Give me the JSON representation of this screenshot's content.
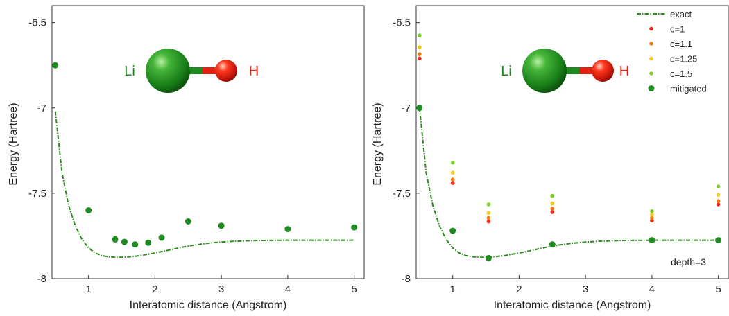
{
  "colors": {
    "exact": "#2e8b1e",
    "mitigated": "#1f8a1f",
    "c_1": "#e8281a",
    "c_1_1": "#f07a10",
    "c_1_25": "#f4c81c",
    "c_1_5": "#7fcf2a",
    "Li": "#1a8a1a",
    "H": "#e02010",
    "axis": "#333333"
  },
  "molecule": {
    "atom_left": "Li",
    "atom_right": "H"
  },
  "chart_data": [
    {
      "type": "scatter",
      "xlabel": "Interatomic distance (Angstrom)",
      "ylabel": "Energy (Hartree)",
      "xlim": [
        0.45,
        5.15
      ],
      "ylim": [
        -8.0,
        -6.4
      ],
      "xticks": [
        1,
        2,
        3,
        4,
        5
      ],
      "yticks": [
        -6.5,
        -7,
        -7.5,
        -8
      ],
      "grid": false,
      "legend": null,
      "annotation": "",
      "series": [
        {
          "style": "dashdot-line",
          "color_key": "exact",
          "x": [
            0.5,
            0.6,
            0.7,
            0.8,
            0.9,
            1.0,
            1.1,
            1.2,
            1.3,
            1.4,
            1.5,
            1.6,
            1.7,
            1.8,
            2.0,
            2.2,
            2.4,
            2.6,
            2.8,
            3.0,
            3.2,
            3.5,
            4.0,
            4.5,
            5.0
          ],
          "y": [
            -7.02,
            -7.38,
            -7.57,
            -7.69,
            -7.77,
            -7.82,
            -7.85,
            -7.865,
            -7.872,
            -7.875,
            -7.875,
            -7.873,
            -7.869,
            -7.864,
            -7.85,
            -7.834,
            -7.817,
            -7.803,
            -7.793,
            -7.786,
            -7.781,
            -7.777,
            -7.775,
            -7.775,
            -7.775
          ]
        },
        {
          "style": "marker",
          "color_key": "mitigated",
          "size": 4.5,
          "x": [
            0.5,
            1.0,
            1.4,
            1.54,
            1.7,
            1.9,
            2.1,
            2.5,
            3.0,
            4.0,
            5.0
          ],
          "y": [
            -6.75,
            -7.6,
            -7.77,
            -7.785,
            -7.8,
            -7.79,
            -7.76,
            -7.665,
            -7.69,
            -7.71,
            -7.7
          ]
        }
      ]
    },
    {
      "type": "scatter",
      "xlabel": "Interatomic distance (Angstrom)",
      "ylabel": "Energy (Hartree)",
      "xlim": [
        0.45,
        5.15
      ],
      "ylim": [
        -8.0,
        -6.4
      ],
      "xticks": [
        1,
        2,
        3,
        4,
        5
      ],
      "yticks": [
        -6.5,
        -7,
        -7.5,
        -8
      ],
      "grid": false,
      "legend": "top-right",
      "annotation": "depth=3",
      "series": [
        {
          "name": "exact",
          "style": "dashdot-line",
          "color_key": "exact",
          "x": [
            0.5,
            0.6,
            0.7,
            0.8,
            0.9,
            1.0,
            1.1,
            1.2,
            1.3,
            1.4,
            1.5,
            1.6,
            1.7,
            1.8,
            2.0,
            2.2,
            2.4,
            2.6,
            2.8,
            3.0,
            3.2,
            3.5,
            4.0,
            4.5,
            5.0
          ],
          "y": [
            -7.0,
            -7.38,
            -7.57,
            -7.69,
            -7.77,
            -7.82,
            -7.85,
            -7.865,
            -7.872,
            -7.875,
            -7.875,
            -7.873,
            -7.869,
            -7.864,
            -7.85,
            -7.834,
            -7.817,
            -7.803,
            -7.793,
            -7.786,
            -7.781,
            -7.777,
            -7.775,
            -7.775,
            -7.775
          ]
        },
        {
          "name": "c=1",
          "style": "marker",
          "color_key": "c_1",
          "size": 2.8,
          "x": [
            0.5,
            1.0,
            1.54,
            2.5,
            4.0,
            5.0
          ],
          "y": [
            -6.71,
            -7.44,
            -7.665,
            -7.61,
            -7.66,
            -7.565
          ]
        },
        {
          "name": "c=1.1",
          "style": "marker",
          "color_key": "c_1_1",
          "size": 2.8,
          "x": [
            0.5,
            1.0,
            1.54,
            2.5,
            4.0,
            5.0
          ],
          "y": [
            -6.685,
            -7.42,
            -7.645,
            -7.59,
            -7.645,
            -7.545
          ]
        },
        {
          "name": "c=1.25",
          "style": "marker",
          "color_key": "c_1_25",
          "size": 2.8,
          "x": [
            0.5,
            1.0,
            1.54,
            2.5,
            4.0,
            5.0
          ],
          "y": [
            -6.645,
            -7.38,
            -7.615,
            -7.56,
            -7.625,
            -7.51
          ]
        },
        {
          "name": "c=1.5",
          "style": "marker",
          "color_key": "c_1_5",
          "size": 2.8,
          "x": [
            0.5,
            1.0,
            1.54,
            2.5,
            4.0,
            5.0
          ],
          "y": [
            -6.575,
            -7.32,
            -7.565,
            -7.515,
            -7.605,
            -7.46
          ]
        },
        {
          "name": "mitigated",
          "style": "marker",
          "color_key": "mitigated",
          "size": 4.5,
          "x": [
            0.5,
            1.0,
            1.54,
            2.5,
            4.0,
            5.0
          ],
          "y": [
            -7.0,
            -7.72,
            -7.88,
            -7.8,
            -7.775,
            -7.775
          ]
        }
      ]
    }
  ]
}
